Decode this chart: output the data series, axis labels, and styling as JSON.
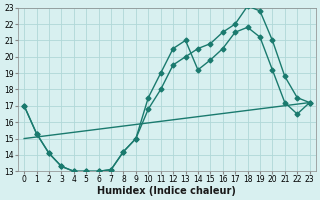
{
  "xlabel": "Humidex (Indice chaleur)",
  "bg_color": "#d8f0f0",
  "grid_color": "#b0d8d8",
  "line_color": "#1a7a6e",
  "xlim": [
    -0.5,
    23.5
  ],
  "ylim": [
    13,
    23
  ],
  "yticks": [
    13,
    14,
    15,
    16,
    17,
    18,
    19,
    20,
    21,
    22,
    23
  ],
  "xticks": [
    0,
    1,
    2,
    3,
    4,
    5,
    6,
    7,
    8,
    9,
    10,
    11,
    12,
    13,
    14,
    15,
    16,
    17,
    18,
    19,
    20,
    21,
    22,
    23
  ],
  "line1_x": [
    0,
    1,
    2,
    3,
    4,
    5,
    6,
    7,
    8,
    9,
    10,
    11,
    12,
    13,
    14,
    15,
    16,
    17,
    18,
    19,
    20,
    21,
    22,
    23
  ],
  "line1_y": [
    17.0,
    15.3,
    14.1,
    13.3,
    13.0,
    13.0,
    13.0,
    13.1,
    14.2,
    15.0,
    16.8,
    18.0,
    19.5,
    20.0,
    20.5,
    20.8,
    21.5,
    22.0,
    23.1,
    22.8,
    21.0,
    18.8,
    17.5,
    17.2
  ],
  "line2_x": [
    0,
    1,
    2,
    3,
    4,
    5,
    6,
    7,
    8,
    9,
    10,
    11,
    12,
    13,
    14,
    15,
    16,
    17,
    18,
    19,
    20,
    21,
    22,
    23
  ],
  "line2_y": [
    17.0,
    15.3,
    14.1,
    13.3,
    13.0,
    13.0,
    13.0,
    13.1,
    14.2,
    15.0,
    17.5,
    19.0,
    20.5,
    21.0,
    19.2,
    19.8,
    20.5,
    21.5,
    21.8,
    21.2,
    19.2,
    17.2,
    16.5,
    17.2
  ],
  "line3_x": [
    0,
    23
  ],
  "line3_y": [
    15.0,
    17.2
  ],
  "marker_size": 2.5,
  "line_width": 1.0,
  "xlabel_fontsize": 7,
  "tick_fontsize": 5.5
}
